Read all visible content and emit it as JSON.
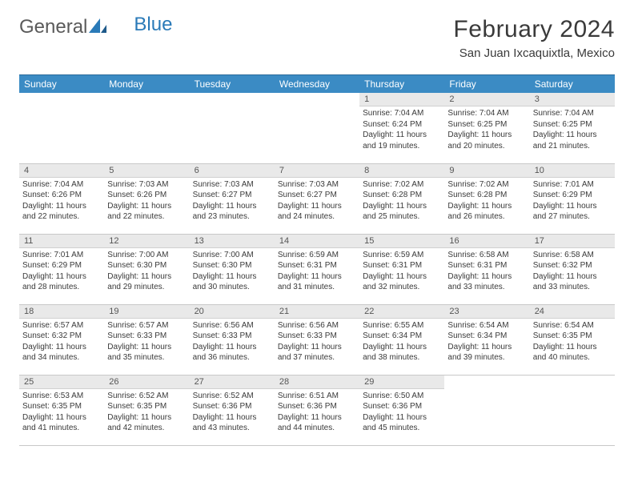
{
  "brand": {
    "part1": "General",
    "part2": "Blue"
  },
  "title": "February 2024",
  "location": "San Juan Ixcaquixtla, Mexico",
  "header_bg": "#3b8bc4",
  "daynum_bg": "#e9e9e9",
  "weekdays": [
    "Sunday",
    "Monday",
    "Tuesday",
    "Wednesday",
    "Thursday",
    "Friday",
    "Saturday"
  ],
  "weeks": [
    [
      {
        "n": "",
        "sr": "",
        "ss": "",
        "dl1": "",
        "dl2": "",
        "empty": true
      },
      {
        "n": "",
        "sr": "",
        "ss": "",
        "dl1": "",
        "dl2": "",
        "empty": true
      },
      {
        "n": "",
        "sr": "",
        "ss": "",
        "dl1": "",
        "dl2": "",
        "empty": true
      },
      {
        "n": "",
        "sr": "",
        "ss": "",
        "dl1": "",
        "dl2": "",
        "empty": true
      },
      {
        "n": "1",
        "sr": "Sunrise: 7:04 AM",
        "ss": "Sunset: 6:24 PM",
        "dl1": "Daylight: 11 hours",
        "dl2": "and 19 minutes."
      },
      {
        "n": "2",
        "sr": "Sunrise: 7:04 AM",
        "ss": "Sunset: 6:25 PM",
        "dl1": "Daylight: 11 hours",
        "dl2": "and 20 minutes."
      },
      {
        "n": "3",
        "sr": "Sunrise: 7:04 AM",
        "ss": "Sunset: 6:25 PM",
        "dl1": "Daylight: 11 hours",
        "dl2": "and 21 minutes."
      }
    ],
    [
      {
        "n": "4",
        "sr": "Sunrise: 7:04 AM",
        "ss": "Sunset: 6:26 PM",
        "dl1": "Daylight: 11 hours",
        "dl2": "and 22 minutes."
      },
      {
        "n": "5",
        "sr": "Sunrise: 7:03 AM",
        "ss": "Sunset: 6:26 PM",
        "dl1": "Daylight: 11 hours",
        "dl2": "and 22 minutes."
      },
      {
        "n": "6",
        "sr": "Sunrise: 7:03 AM",
        "ss": "Sunset: 6:27 PM",
        "dl1": "Daylight: 11 hours",
        "dl2": "and 23 minutes."
      },
      {
        "n": "7",
        "sr": "Sunrise: 7:03 AM",
        "ss": "Sunset: 6:27 PM",
        "dl1": "Daylight: 11 hours",
        "dl2": "and 24 minutes."
      },
      {
        "n": "8",
        "sr": "Sunrise: 7:02 AM",
        "ss": "Sunset: 6:28 PM",
        "dl1": "Daylight: 11 hours",
        "dl2": "and 25 minutes."
      },
      {
        "n": "9",
        "sr": "Sunrise: 7:02 AM",
        "ss": "Sunset: 6:28 PM",
        "dl1": "Daylight: 11 hours",
        "dl2": "and 26 minutes."
      },
      {
        "n": "10",
        "sr": "Sunrise: 7:01 AM",
        "ss": "Sunset: 6:29 PM",
        "dl1": "Daylight: 11 hours",
        "dl2": "and 27 minutes."
      }
    ],
    [
      {
        "n": "11",
        "sr": "Sunrise: 7:01 AM",
        "ss": "Sunset: 6:29 PM",
        "dl1": "Daylight: 11 hours",
        "dl2": "and 28 minutes."
      },
      {
        "n": "12",
        "sr": "Sunrise: 7:00 AM",
        "ss": "Sunset: 6:30 PM",
        "dl1": "Daylight: 11 hours",
        "dl2": "and 29 minutes."
      },
      {
        "n": "13",
        "sr": "Sunrise: 7:00 AM",
        "ss": "Sunset: 6:30 PM",
        "dl1": "Daylight: 11 hours",
        "dl2": "and 30 minutes."
      },
      {
        "n": "14",
        "sr": "Sunrise: 6:59 AM",
        "ss": "Sunset: 6:31 PM",
        "dl1": "Daylight: 11 hours",
        "dl2": "and 31 minutes."
      },
      {
        "n": "15",
        "sr": "Sunrise: 6:59 AM",
        "ss": "Sunset: 6:31 PM",
        "dl1": "Daylight: 11 hours",
        "dl2": "and 32 minutes."
      },
      {
        "n": "16",
        "sr": "Sunrise: 6:58 AM",
        "ss": "Sunset: 6:31 PM",
        "dl1": "Daylight: 11 hours",
        "dl2": "and 33 minutes."
      },
      {
        "n": "17",
        "sr": "Sunrise: 6:58 AM",
        "ss": "Sunset: 6:32 PM",
        "dl1": "Daylight: 11 hours",
        "dl2": "and 33 minutes."
      }
    ],
    [
      {
        "n": "18",
        "sr": "Sunrise: 6:57 AM",
        "ss": "Sunset: 6:32 PM",
        "dl1": "Daylight: 11 hours",
        "dl2": "and 34 minutes."
      },
      {
        "n": "19",
        "sr": "Sunrise: 6:57 AM",
        "ss": "Sunset: 6:33 PM",
        "dl1": "Daylight: 11 hours",
        "dl2": "and 35 minutes."
      },
      {
        "n": "20",
        "sr": "Sunrise: 6:56 AM",
        "ss": "Sunset: 6:33 PM",
        "dl1": "Daylight: 11 hours",
        "dl2": "and 36 minutes."
      },
      {
        "n": "21",
        "sr": "Sunrise: 6:56 AM",
        "ss": "Sunset: 6:33 PM",
        "dl1": "Daylight: 11 hours",
        "dl2": "and 37 minutes."
      },
      {
        "n": "22",
        "sr": "Sunrise: 6:55 AM",
        "ss": "Sunset: 6:34 PM",
        "dl1": "Daylight: 11 hours",
        "dl2": "and 38 minutes."
      },
      {
        "n": "23",
        "sr": "Sunrise: 6:54 AM",
        "ss": "Sunset: 6:34 PM",
        "dl1": "Daylight: 11 hours",
        "dl2": "and 39 minutes."
      },
      {
        "n": "24",
        "sr": "Sunrise: 6:54 AM",
        "ss": "Sunset: 6:35 PM",
        "dl1": "Daylight: 11 hours",
        "dl2": "and 40 minutes."
      }
    ],
    [
      {
        "n": "25",
        "sr": "Sunrise: 6:53 AM",
        "ss": "Sunset: 6:35 PM",
        "dl1": "Daylight: 11 hours",
        "dl2": "and 41 minutes."
      },
      {
        "n": "26",
        "sr": "Sunrise: 6:52 AM",
        "ss": "Sunset: 6:35 PM",
        "dl1": "Daylight: 11 hours",
        "dl2": "and 42 minutes."
      },
      {
        "n": "27",
        "sr": "Sunrise: 6:52 AM",
        "ss": "Sunset: 6:36 PM",
        "dl1": "Daylight: 11 hours",
        "dl2": "and 43 minutes."
      },
      {
        "n": "28",
        "sr": "Sunrise: 6:51 AM",
        "ss": "Sunset: 6:36 PM",
        "dl1": "Daylight: 11 hours",
        "dl2": "and 44 minutes."
      },
      {
        "n": "29",
        "sr": "Sunrise: 6:50 AM",
        "ss": "Sunset: 6:36 PM",
        "dl1": "Daylight: 11 hours",
        "dl2": "and 45 minutes."
      },
      {
        "n": "",
        "sr": "",
        "ss": "",
        "dl1": "",
        "dl2": "",
        "empty": true
      },
      {
        "n": "",
        "sr": "",
        "ss": "",
        "dl1": "",
        "dl2": "",
        "empty": true
      }
    ]
  ]
}
